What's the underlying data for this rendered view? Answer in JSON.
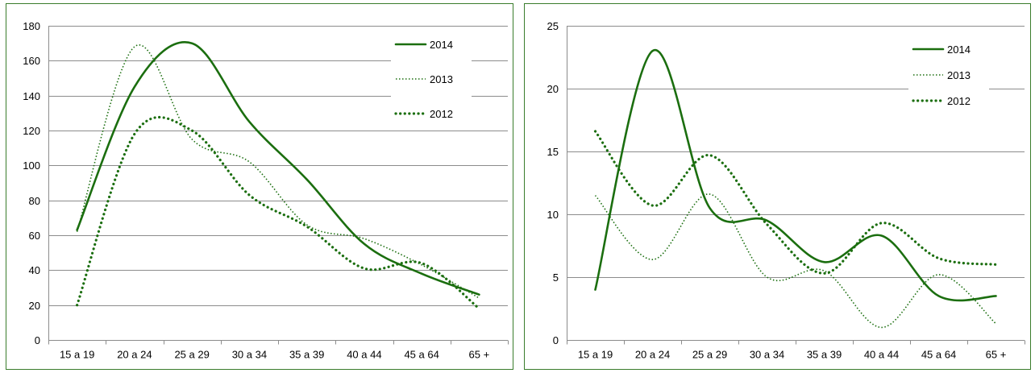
{
  "colors": {
    "series": "#1b6e0f",
    "border": "#3a7d2c",
    "grid": "#8c8c8c"
  },
  "chart_data": [
    {
      "type": "line",
      "categories": [
        "15 a 19",
        "20 a 24",
        "25 a 29",
        "30 a 34",
        "35 a 39",
        "40 a 44",
        "45 a 64",
        "65 +"
      ],
      "ylim": [
        0,
        180
      ],
      "yticks": [
        0,
        20,
        40,
        60,
        80,
        100,
        120,
        140,
        160,
        180
      ],
      "grid": true,
      "smooth": true,
      "legend_position": "top-right",
      "series": [
        {
          "name": "2014",
          "style": "solid",
          "values": [
            63,
            145,
            170,
            125,
            92,
            55,
            38,
            26
          ]
        },
        {
          "name": "2013",
          "style": "dotted-thin",
          "values": [
            62,
            168,
            115,
            102,
            66,
            58,
            43,
            24
          ]
        },
        {
          "name": "2012",
          "style": "dotted-thick",
          "values": [
            20,
            118,
            120,
            83,
            65,
            41,
            44,
            18
          ]
        }
      ]
    },
    {
      "type": "line",
      "categories": [
        "15 a 19",
        "20 a 24",
        "25 a 29",
        "30 a 34",
        "35 a 39",
        "40 a 44",
        "45 a 64",
        "65 +"
      ],
      "ylim": [
        0,
        25
      ],
      "yticks": [
        0,
        5,
        10,
        15,
        20,
        25
      ],
      "grid": true,
      "smooth": true,
      "legend_position": "top-right",
      "series": [
        {
          "name": "2014",
          "style": "solid",
          "values": [
            4,
            23,
            10.5,
            9.5,
            6.2,
            8.3,
            3.5,
            3.5
          ]
        },
        {
          "name": "2013",
          "style": "dotted-thin",
          "values": [
            11.5,
            6.4,
            11.6,
            5,
            5.5,
            1,
            5.2,
            1.3
          ]
        },
        {
          "name": "2012",
          "style": "dotted-thick",
          "values": [
            16.6,
            10.7,
            14.7,
            9.2,
            5.3,
            9.3,
            6.5,
            6
          ]
        }
      ]
    }
  ]
}
